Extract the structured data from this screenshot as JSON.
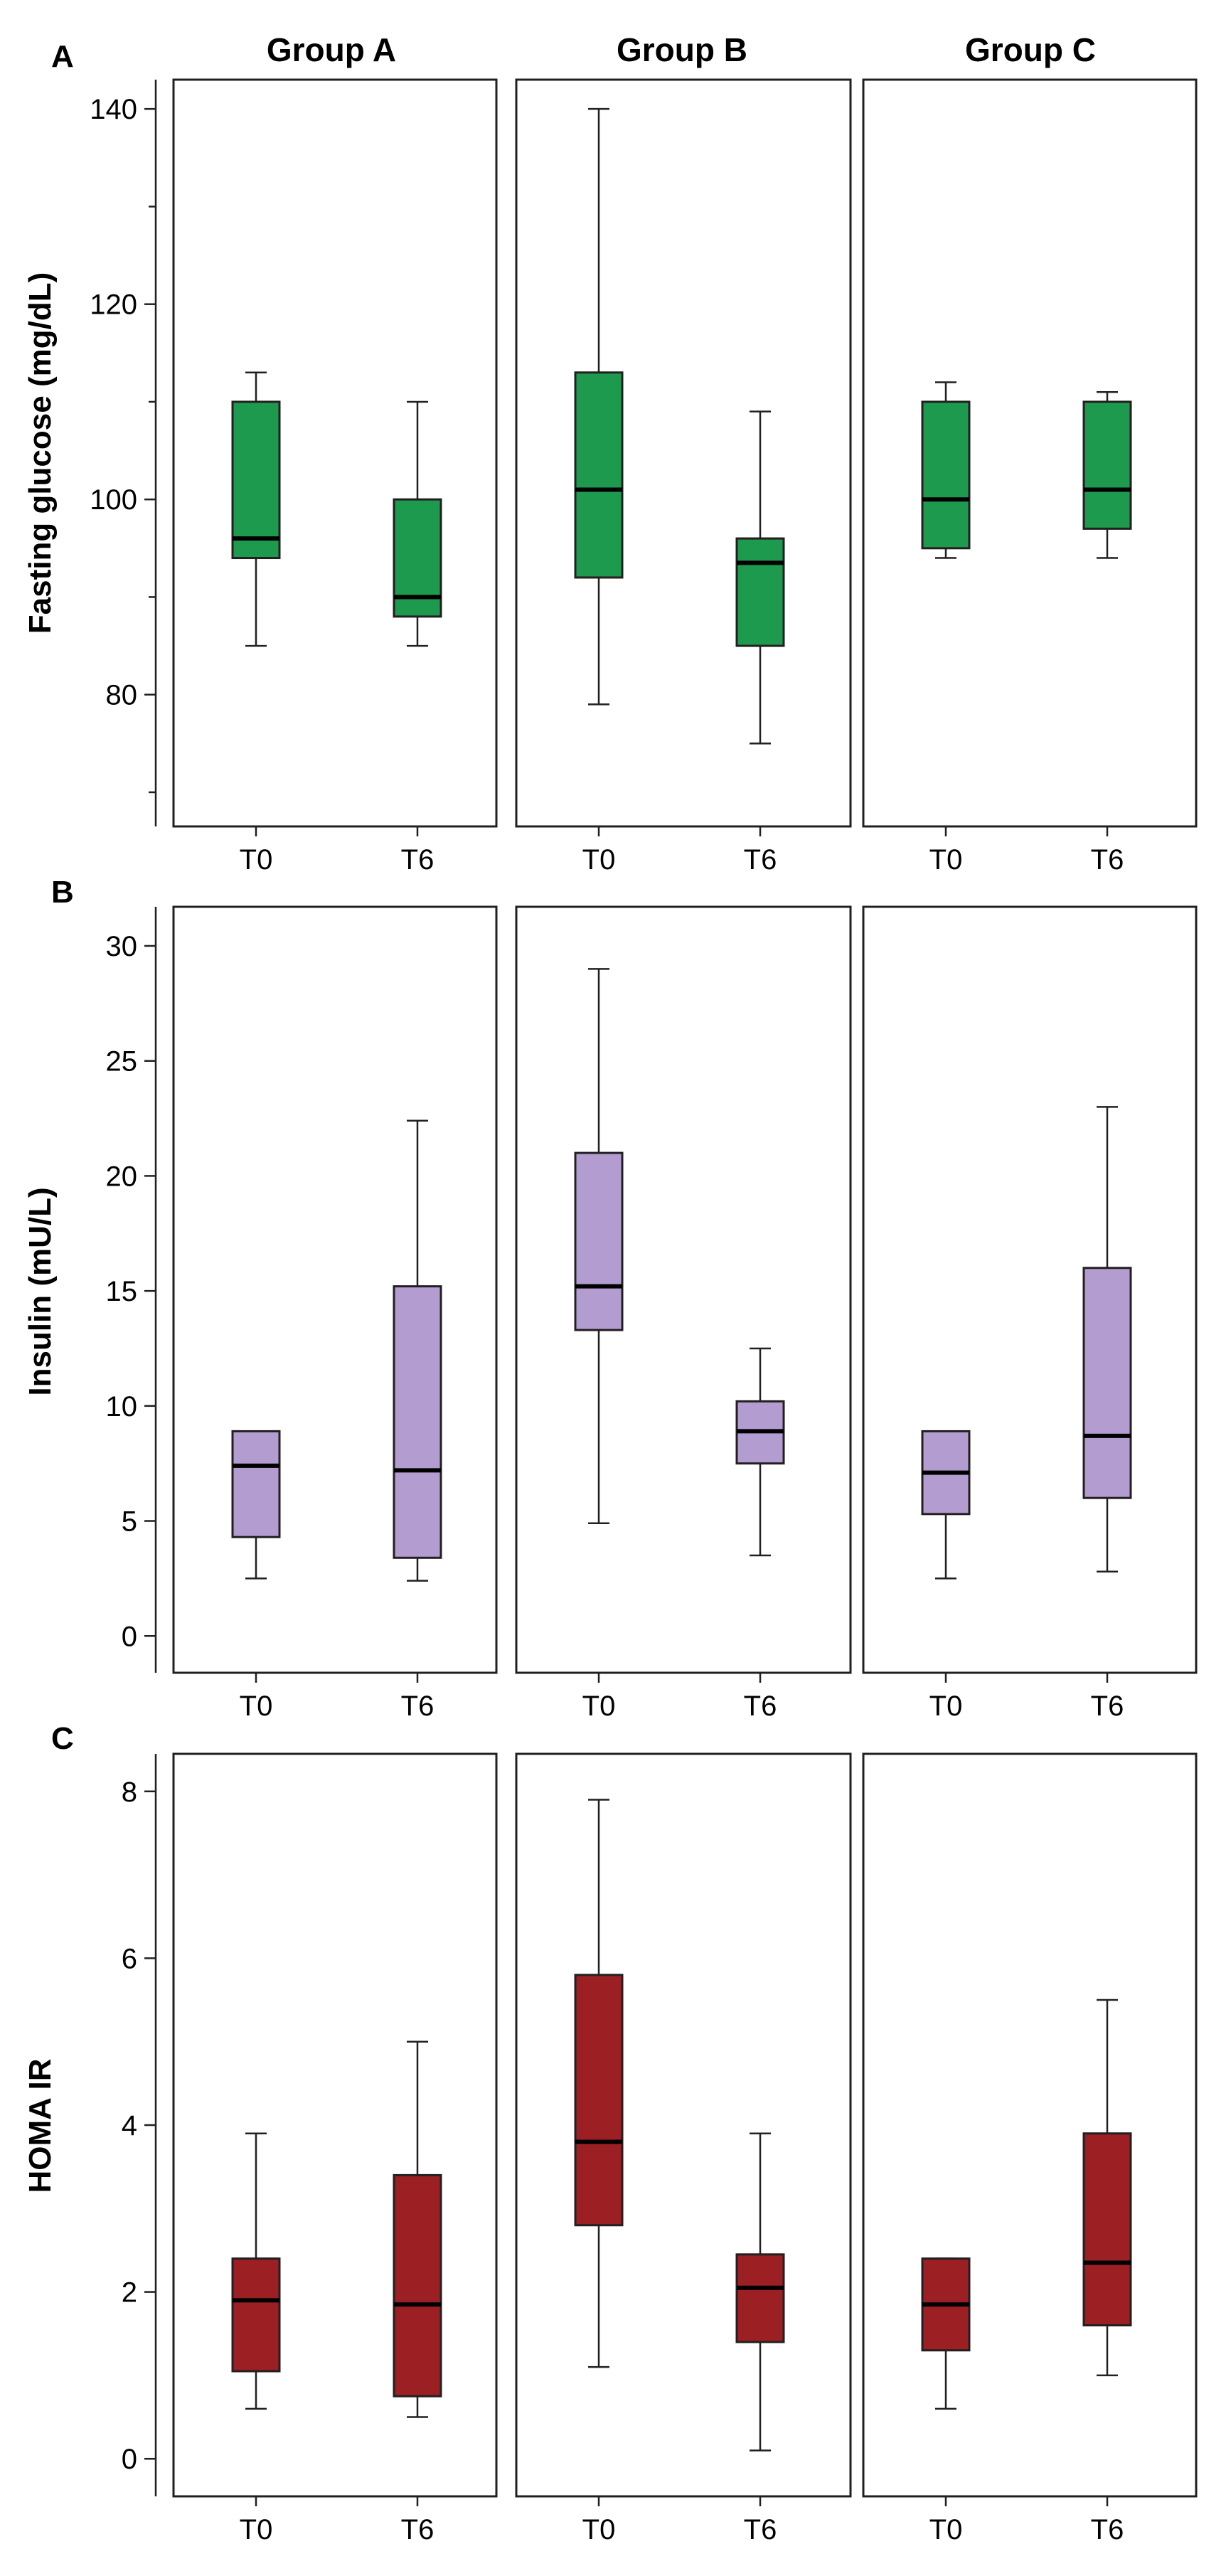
{
  "chart_data": {
    "type": "boxplot",
    "groups": [
      "Group A",
      "Group B",
      "Group C"
    ],
    "timepoints": [
      "T0",
      "T6"
    ],
    "panels": [
      {
        "id": "A",
        "letter": "A",
        "ylabel": "Fasting glucose (mg/dL)",
        "color": "#1d9a4d",
        "ylim": [
          66.5,
          143
        ],
        "yticks": [
          80,
          100,
          120,
          140
        ],
        "minor_ticks": [
          70,
          90,
          110,
          130
        ],
        "boxes": [
          [
            {
              "min": 85,
              "q1": 94,
              "median": 96,
              "q3": 110,
              "max": 113
            },
            {
              "min": 85,
              "q1": 88,
              "median": 90,
              "q3": 100,
              "max": 110
            }
          ],
          [
            {
              "min": 79,
              "q1": 92,
              "median": 101,
              "q3": 113,
              "max": 140
            },
            {
              "min": 75,
              "q1": 85,
              "median": 93.5,
              "q3": 96,
              "max": 109
            }
          ],
          [
            {
              "min": 94,
              "q1": 95,
              "median": 100,
              "q3": 110,
              "max": 112
            },
            {
              "min": 94,
              "q1": 97,
              "median": 101,
              "q3": 110,
              "max": 111
            }
          ]
        ]
      },
      {
        "id": "B",
        "letter": "B",
        "ylabel": "Insulin (mU/L)",
        "color": "#b29cd0",
        "ylim": [
          -1.6,
          31.7
        ],
        "yticks": [
          0,
          5,
          10,
          15,
          20,
          25,
          30
        ],
        "minor_ticks": [],
        "boxes": [
          [
            {
              "min": 2.5,
              "q1": 4.3,
              "median": 7.4,
              "q3": 8.9,
              "max": 8.9
            },
            {
              "min": 2.4,
              "q1": 3.4,
              "median": 7.2,
              "q3": 15.2,
              "max": 22.4
            }
          ],
          [
            {
              "min": 4.9,
              "q1": 13.3,
              "median": 15.2,
              "q3": 21.0,
              "max": 29.0
            },
            {
              "min": 3.5,
              "q1": 7.5,
              "median": 8.9,
              "q3": 10.2,
              "max": 12.5
            }
          ],
          [
            {
              "min": 2.5,
              "q1": 5.3,
              "median": 7.1,
              "q3": 8.9,
              "max": 8.9
            },
            {
              "min": 2.8,
              "q1": 6.0,
              "median": 8.7,
              "q3": 16.0,
              "max": 23.0
            }
          ]
        ]
      },
      {
        "id": "C",
        "letter": "C",
        "ylabel": "HOMA IR",
        "color": "#9b1f23",
        "ylim": [
          -0.45,
          8.45
        ],
        "yticks": [
          0,
          2,
          4,
          6,
          8
        ],
        "minor_ticks": [],
        "boxes": [
          [
            {
              "min": 0.6,
              "q1": 1.05,
              "median": 1.9,
              "q3": 2.4,
              "max": 3.9
            },
            {
              "min": 0.5,
              "q1": 0.75,
              "median": 1.85,
              "q3": 3.4,
              "max": 5.0
            }
          ],
          [
            {
              "min": 1.1,
              "q1": 2.8,
              "median": 3.8,
              "q3": 5.8,
              "max": 7.9
            },
            {
              "min": 0.1,
              "q1": 1.4,
              "median": 2.05,
              "q3": 2.45,
              "max": 3.9
            }
          ],
          [
            {
              "min": 0.6,
              "q1": 1.3,
              "median": 1.85,
              "q3": 2.4,
              "max": 2.4
            },
            {
              "min": 1.0,
              "q1": 1.6,
              "median": 2.35,
              "q3": 3.9,
              "max": 5.5
            }
          ]
        ]
      }
    ]
  }
}
